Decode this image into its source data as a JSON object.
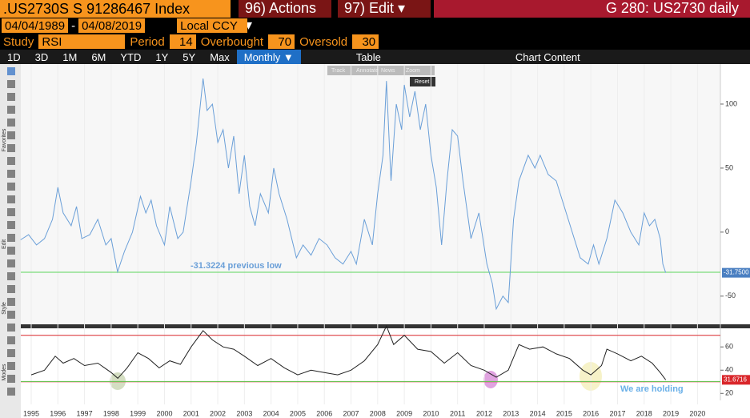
{
  "header": {
    "ticker": ".US2730S S 91286467 Index",
    "actions": "96) Actions ▾",
    "edit": "97) Edit ▾",
    "window": "G 280: US2730 daily"
  },
  "range": {
    "start": "04/04/1989",
    "dash": "-",
    "end": "04/08/2019",
    "currency": "Local CCY"
  },
  "study": {
    "label": "Study",
    "name": "RSI",
    "period_label": "Period",
    "period": 14,
    "overbought_label": "Overbought",
    "overbought": 70,
    "oversold_label": "Oversold",
    "oversold": 30
  },
  "toolbar": {
    "periods": [
      "1D",
      "3D",
      "1M",
      "6M",
      "YTD",
      "1Y",
      "5Y",
      "Max"
    ],
    "frequency": "Monthly ▼",
    "table": "Table",
    "chart_content": "Chart Content"
  },
  "sidebar": [
    "Favorites",
    "Edit",
    "Style",
    "Modes"
  ],
  "tooltip": [
    "Track",
    "Annotate",
    "News",
    "Zoom",
    "Reset"
  ],
  "chart": {
    "type": "line",
    "x": [
      1994.6,
      1994.9,
      1995.2,
      1995.5,
      1995.8,
      1996.0,
      1996.2,
      1996.5,
      1996.7,
      1996.9,
      1997.2,
      1997.5,
      1997.8,
      1998.0,
      1998.24,
      1998.5,
      1998.8,
      1999.1,
      1999.3,
      1999.5,
      1999.7,
      2000.0,
      2000.2,
      2000.5,
      2000.7,
      2001.0,
      2001.2,
      2001.45,
      2001.6,
      2001.8,
      2002.0,
      2002.2,
      2002.4,
      2002.6,
      2002.8,
      2003.0,
      2003.2,
      2003.4,
      2003.6,
      2003.9,
      2004.1,
      2004.3,
      2004.6,
      2004.95,
      2005.2,
      2005.5,
      2005.8,
      2006.1,
      2006.4,
      2006.7,
      2007.0,
      2007.2,
      2007.5,
      2007.8,
      2008.0,
      2008.2,
      2008.33,
      2008.5,
      2008.7,
      2008.9,
      2009.0,
      2009.2,
      2009.4,
      2009.6,
      2009.8,
      2010.0,
      2010.2,
      2010.4,
      2010.6,
      2010.8,
      2011.0,
      2011.2,
      2011.5,
      2011.8,
      2012.1,
      2012.3,
      2012.45,
      2012.7,
      2012.9,
      2013.1,
      2013.3,
      2013.65,
      2013.9,
      2014.1,
      2014.4,
      2014.7,
      2015.0,
      2015.3,
      2015.6,
      2015.9,
      2016.1,
      2016.3,
      2016.6,
      2016.9,
      2017.2,
      2017.5,
      2017.8,
      2018.0,
      2018.2,
      2018.4,
      2018.6,
      2018.7,
      2018.81
    ],
    "series": [
      {
        "name": "US2730",
        "color": "#6a9fd8",
        "values": [
          -6,
          -2,
          -10,
          -5,
          10,
          35,
          15,
          5,
          20,
          -5,
          -2,
          10,
          -10,
          -5,
          -31,
          -15,
          0,
          28,
          15,
          25,
          5,
          -10,
          20,
          -5,
          0,
          40,
          70,
          120,
          95,
          100,
          70,
          80,
          50,
          75,
          30,
          60,
          20,
          5,
          30,
          15,
          50,
          30,
          10,
          -20,
          -10,
          -18,
          -5,
          -10,
          -20,
          -25,
          -15,
          -25,
          10,
          -10,
          30,
          60,
          118,
          40,
          100,
          80,
          115,
          90,
          110,
          80,
          100,
          60,
          35,
          -10,
          40,
          80,
          75,
          40,
          -5,
          15,
          -25,
          -40,
          -60,
          -50,
          -55,
          10,
          40,
          60,
          50,
          60,
          45,
          40,
          20,
          0,
          -20,
          -25,
          -10,
          -25,
          -5,
          25,
          15,
          0,
          -10,
          15,
          5,
          10,
          -5,
          -25,
          -31.75
        ],
        "value_labels_last": "-31.7500"
      }
    ],
    "ylim": [
      -72,
      130
    ],
    "yticks": [
      100,
      50,
      0,
      -50
    ],
    "reference": {
      "value": -31.3224,
      "label": "-31.3224 previous low",
      "color": "#5bd65b"
    },
    "xlim": [
      1994.61,
      2020.86
    ],
    "xticks": [
      1995,
      1996,
      1997,
      1998,
      1999,
      2000,
      2001,
      2002,
      2003,
      2004,
      2005,
      2006,
      2007,
      2008,
      2009,
      2010,
      2011,
      2012,
      2013,
      2014,
      2015,
      2016,
      2017,
      2018,
      2019,
      2020
    ]
  },
  "rsi": {
    "type": "line",
    "x": [
      1995.0,
      1995.5,
      1995.9,
      1996.2,
      1996.6,
      1997.0,
      1997.5,
      1998.0,
      1998.25,
      1998.6,
      1999.0,
      1999.4,
      1999.8,
      2000.2,
      2000.6,
      2001.0,
      2001.45,
      2001.8,
      2002.2,
      2002.6,
      2003.0,
      2003.5,
      2004.0,
      2004.5,
      2005.0,
      2005.5,
      2006.0,
      2006.5,
      2007.0,
      2007.5,
      2008.0,
      2008.33,
      2008.6,
      2009.0,
      2009.5,
      2010.0,
      2010.5,
      2011.0,
      2011.5,
      2012.0,
      2012.45,
      2012.9,
      2013.3,
      2013.7,
      2014.2,
      2014.7,
      2015.2,
      2015.7,
      2016.0,
      2016.4,
      2016.6,
      2017.0,
      2017.5,
      2017.9,
      2018.3,
      2018.6,
      2018.81
    ],
    "values": [
      36,
      40,
      52,
      46,
      50,
      44,
      46,
      38,
      33,
      42,
      55,
      50,
      42,
      48,
      45,
      60,
      74,
      66,
      60,
      58,
      52,
      44,
      50,
      42,
      36,
      40,
      38,
      36,
      40,
      48,
      62,
      78,
      62,
      70,
      58,
      56,
      46,
      55,
      44,
      40,
      34,
      40,
      62,
      58,
      60,
      54,
      50,
      40,
      36,
      44,
      58,
      54,
      48,
      52,
      46,
      38,
      31.6716
    ],
    "color": "#222222",
    "ylim": [
      14,
      76
    ],
    "yticks": [
      60,
      40,
      20
    ],
    "last_label": "31.6716",
    "band_color": "#d9262a",
    "annotation": "We are holding"
  }
}
